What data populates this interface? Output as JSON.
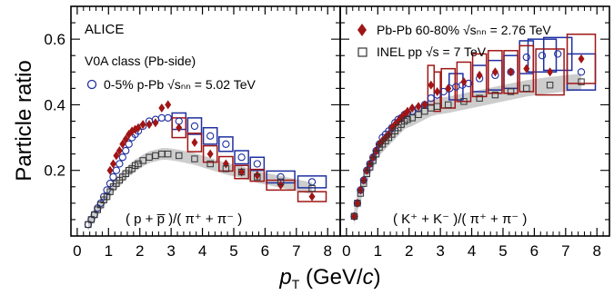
{
  "figure": {
    "y_axis_label": "Particle ratio",
    "x_axis_label_main": "p",
    "x_axis_label_sub": "T",
    "x_axis_label_unit_open": " (GeV/",
    "x_axis_label_unit_var": "c",
    "x_axis_label_unit_close": ")"
  },
  "colors": {
    "ppb": "#1f2fa0",
    "pbpb": "#a01515",
    "pp": "#555555",
    "band": "#c8c8c8",
    "frame": "#000000"
  },
  "chart_data": [
    {
      "type": "scatter",
      "panel": "left",
      "annotations": {
        "experiment": "ALICE",
        "class_label": "V0A class (Pb-side)",
        "ratio_label": "( p + p̅ )/( π⁺ + π⁻ )"
      },
      "legend": [
        {
          "label": "0-5% p-Pb √sₙₙ = 5.02 TeV",
          "marker": "open-circle",
          "color": "#1f2fa0"
        }
      ],
      "xlim": [
        -0.2,
        8.4
      ],
      "ylim": [
        0,
        0.7
      ],
      "x_ticks": [
        0,
        1,
        2,
        3,
        4,
        5,
        6,
        7,
        8
      ],
      "y_ticks": [
        0.2,
        0.4,
        0.6
      ],
      "series": [
        {
          "name": "0-5% p-Pb √sₙₙ = 5.02 TeV",
          "marker": "open-circle",
          "x": [
            0.35,
            0.45,
            0.55,
            0.65,
            0.75,
            0.85,
            0.95,
            1.05,
            1.15,
            1.25,
            1.35,
            1.45,
            1.55,
            1.65,
            1.75,
            1.85,
            1.95,
            2.1,
            2.3,
            2.5,
            2.7,
            2.9,
            3.25,
            3.75,
            4.25,
            4.75,
            5.25,
            5.75,
            6.5,
            7.5
          ],
          "y": [
            0.035,
            0.05,
            0.065,
            0.085,
            0.1,
            0.12,
            0.14,
            0.16,
            0.18,
            0.2,
            0.22,
            0.24,
            0.26,
            0.28,
            0.3,
            0.31,
            0.32,
            0.335,
            0.35,
            0.355,
            0.36,
            0.36,
            0.35,
            0.335,
            0.305,
            0.28,
            0.24,
            0.22,
            0.18,
            0.165
          ],
          "syst_x": [
            3.25,
            3.75,
            4.25,
            4.75,
            5.25,
            5.75,
            6.5,
            7.5
          ],
          "syst_dy": [
            0.025,
            0.025,
            0.025,
            0.022,
            0.02,
            0.02,
            0.018,
            0.018
          ]
        },
        {
          "name": "Pb-Pb 60-80% √sₙₙ = 2.76 TeV",
          "marker": "filled-diamond",
          "x": [
            1.05,
            1.15,
            1.25,
            1.35,
            1.45,
            1.55,
            1.65,
            1.75,
            1.85,
            1.95,
            2.1,
            2.3,
            2.5,
            2.7,
            2.9,
            3.25,
            3.75,
            4.25,
            4.75,
            5.25,
            5.75,
            6.5,
            7.5
          ],
          "y": [
            0.2,
            0.22,
            0.245,
            0.26,
            0.28,
            0.295,
            0.31,
            0.32,
            0.325,
            0.33,
            0.34,
            0.34,
            0.345,
            0.39,
            0.4,
            0.33,
            0.285,
            0.25,
            0.22,
            0.195,
            0.185,
            0.155,
            0.12
          ],
          "syst_x": [
            3.25,
            3.75,
            4.25,
            4.75,
            5.25,
            5.75,
            6.5,
            7.5
          ],
          "syst_dy": [
            0.03,
            0.028,
            0.025,
            0.022,
            0.02,
            0.018,
            0.015,
            0.015
          ]
        },
        {
          "name": "INEL pp √s = 7 TeV",
          "marker": "open-square",
          "x": [
            0.35,
            0.45,
            0.55,
            0.65,
            0.75,
            0.85,
            0.95,
            1.05,
            1.15,
            1.25,
            1.35,
            1.45,
            1.55,
            1.65,
            1.75,
            1.85,
            1.95,
            2.1,
            2.3,
            2.5,
            2.7,
            2.9,
            3.25,
            3.75,
            4.25,
            4.75,
            5.25,
            5.75,
            6.5,
            7.5
          ],
          "y": [
            0.035,
            0.05,
            0.065,
            0.08,
            0.095,
            0.11,
            0.12,
            0.135,
            0.15,
            0.16,
            0.17,
            0.18,
            0.19,
            0.2,
            0.205,
            0.215,
            0.22,
            0.23,
            0.24,
            0.245,
            0.25,
            0.25,
            0.245,
            0.235,
            0.22,
            0.205,
            0.195,
            0.18,
            0.165,
            0.145
          ],
          "band_dy": 0.018
        }
      ]
    },
    {
      "type": "scatter",
      "panel": "right",
      "annotations": {
        "ratio_label": "( K⁺ + K⁻ )/( π⁺ + π⁻ )"
      },
      "legend": [
        {
          "label": "Pb-Pb 60-80% √sₙₙ = 2.76 TeV",
          "marker": "filled-diamond",
          "color": "#a01515"
        },
        {
          "label": "INEL pp √s = 7 TeV",
          "marker": "open-square",
          "color": "#555555"
        }
      ],
      "xlim": [
        -0.2,
        8.4
      ],
      "ylim": [
        0,
        0.7
      ],
      "x_ticks": [
        0,
        1,
        2,
        3,
        4,
        5,
        6,
        7,
        8
      ],
      "series": [
        {
          "name": "0-5% p-Pb √sₙₙ = 5.02 TeV",
          "marker": "open-circle",
          "x": [
            0.25,
            0.35,
            0.45,
            0.55,
            0.65,
            0.75,
            0.85,
            0.95,
            1.05,
            1.15,
            1.25,
            1.35,
            1.45,
            1.55,
            1.65,
            1.75,
            1.85,
            1.95,
            2.1,
            2.3,
            2.5,
            2.7,
            2.9,
            3.1,
            3.3,
            3.5,
            3.7,
            3.9,
            4.25,
            4.75,
            5.25,
            5.75,
            6.25,
            6.75,
            7.5
          ],
          "y": [
            0.06,
            0.1,
            0.14,
            0.17,
            0.2,
            0.22,
            0.24,
            0.26,
            0.28,
            0.3,
            0.31,
            0.32,
            0.33,
            0.345,
            0.355,
            0.36,
            0.37,
            0.375,
            0.38,
            0.39,
            0.4,
            0.42,
            0.43,
            0.44,
            0.45,
            0.455,
            0.46,
            0.465,
            0.48,
            0.49,
            0.5,
            0.545,
            0.55,
            0.555,
            0.5
          ],
          "syst_x": [
            3.5,
            4.25,
            4.75,
            5.25,
            5.75,
            6.25,
            6.75,
            7.5
          ],
          "syst_dy": [
            0.04,
            0.04,
            0.045,
            0.05,
            0.05,
            0.05,
            0.05,
            0.055
          ]
        },
        {
          "name": "Pb-Pb 60-80% √sₙₙ = 2.76 TeV",
          "marker": "filled-diamond",
          "x": [
            0.25,
            0.35,
            0.45,
            0.55,
            0.65,
            0.75,
            0.85,
            0.95,
            1.05,
            1.15,
            1.25,
            1.35,
            1.45,
            1.55,
            1.65,
            1.75,
            1.85,
            1.95,
            2.1,
            2.3,
            2.5,
            2.7,
            2.9,
            3.25,
            3.75,
            4.25,
            4.75,
            5.25,
            5.75,
            6.5,
            7.5
          ],
          "y": [
            0.06,
            0.1,
            0.14,
            0.17,
            0.2,
            0.22,
            0.24,
            0.26,
            0.28,
            0.29,
            0.3,
            0.31,
            0.33,
            0.34,
            0.35,
            0.36,
            0.37,
            0.38,
            0.39,
            0.395,
            0.4,
            0.46,
            0.44,
            0.45,
            0.47,
            0.49,
            0.5,
            0.5,
            0.51,
            0.5,
            0.54
          ],
          "syst_x": [
            2.7,
            2.9,
            3.25,
            3.75,
            4.25,
            4.75,
            5.25,
            5.75,
            6.5,
            7.5
          ],
          "syst_dy": [
            0.06,
            0.06,
            0.06,
            0.06,
            0.065,
            0.065,
            0.065,
            0.07,
            0.07,
            0.075
          ]
        },
        {
          "name": "INEL pp √s = 7 TeV",
          "marker": "open-square",
          "x": [
            0.25,
            0.35,
            0.45,
            0.55,
            0.65,
            0.75,
            0.85,
            0.95,
            1.05,
            1.15,
            1.25,
            1.35,
            1.45,
            1.55,
            1.65,
            1.75,
            1.85,
            1.95,
            2.1,
            2.3,
            2.5,
            2.7,
            2.9,
            3.25,
            3.75,
            4.25,
            4.75,
            5.25,
            5.75,
            6.5,
            7.5
          ],
          "y": [
            0.06,
            0.1,
            0.13,
            0.16,
            0.19,
            0.21,
            0.23,
            0.25,
            0.27,
            0.28,
            0.29,
            0.3,
            0.31,
            0.32,
            0.33,
            0.34,
            0.35,
            0.355,
            0.36,
            0.37,
            0.38,
            0.39,
            0.395,
            0.4,
            0.41,
            0.42,
            0.43,
            0.44,
            0.45,
            0.46,
            0.47
          ],
          "band_dy": 0.025
        }
      ]
    }
  ]
}
